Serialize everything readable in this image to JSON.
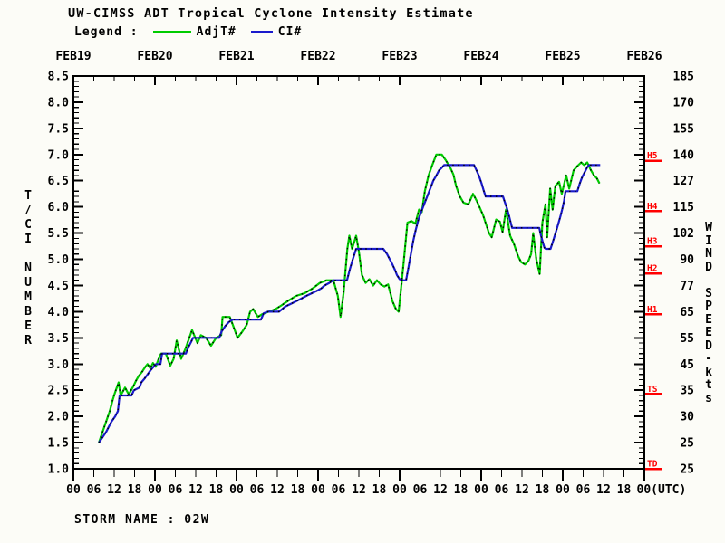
{
  "title": "UW-CIMSS ADT Tropical Cyclone Intensity Estimate",
  "legend": {
    "label": "Legend :",
    "adjt_label": "AdjT#",
    "ci_label": "CI#",
    "adjt_color": "#00cc00",
    "ci_color": "#1a1acc"
  },
  "storm_name": "STORM NAME : 02W",
  "chart_data": {
    "type": "line",
    "title": "UW-CIMSS ADT Tropical Cyclone Intensity Estimate",
    "xlabel": "",
    "ylabel_left": "T/CI NUMBER",
    "ylabel_right": "WIND SPEED-kts",
    "x_axis": {
      "top_labels": [
        "FEB19",
        "FEB20",
        "FEB21",
        "FEB22",
        "FEB23",
        "FEB24",
        "FEB25",
        "FEB26"
      ],
      "bottom_cycle": [
        "00",
        "06",
        "12",
        "18"
      ],
      "bottom_last": "00(UTC)",
      "hours_range": [
        0,
        168
      ],
      "tick_step_hours": 6
    },
    "y_left": {
      "min": 1.0,
      "max": 8.5,
      "tick_labels": [
        "8.5",
        "8.0",
        "7.5",
        "7.0",
        "6.5",
        "6.0",
        "5.5",
        "5.0",
        "4.5",
        "4.0",
        "3.5",
        "3.0",
        "2.5",
        "2.0",
        "1.5",
        "1.0"
      ]
    },
    "y_right": {
      "wind_labels": [
        "185",
        "170",
        "155",
        "140",
        "127",
        "115",
        "102",
        "90",
        "77",
        "65",
        "55",
        "45",
        "35",
        "30",
        "25",
        "25"
      ]
    },
    "category_markers": [
      {
        "label": "H5",
        "t": 6.88
      },
      {
        "label": "H4",
        "t": 5.92
      },
      {
        "label": "H3",
        "t": 5.25
      },
      {
        "label": "H2",
        "t": 4.73
      },
      {
        "label": "H1",
        "t": 3.95
      },
      {
        "label": "TS",
        "t": 2.43
      },
      {
        "label": "TD",
        "t": 1.0
      }
    ],
    "marker_color": "#ff0000",
    "series": [
      {
        "name": "AdjT#",
        "color": "#00cc00",
        "points": [
          [
            7.5,
            1.5
          ],
          [
            8.3,
            1.65
          ],
          [
            9.1,
            1.8
          ],
          [
            9.9,
            1.95
          ],
          [
            10.7,
            2.1
          ],
          [
            11.5,
            2.3
          ],
          [
            12.2,
            2.45
          ],
          [
            13.3,
            2.65
          ],
          [
            13.9,
            2.4
          ],
          [
            15.2,
            2.55
          ],
          [
            16.3,
            2.42
          ],
          [
            17.6,
            2.57
          ],
          [
            18.4,
            2.68
          ],
          [
            19.2,
            2.77
          ],
          [
            20.3,
            2.86
          ],
          [
            21.1,
            2.94
          ],
          [
            21.8,
            3.0
          ],
          [
            22.6,
            2.92
          ],
          [
            23.4,
            3.02
          ],
          [
            24.2,
            2.95
          ],
          [
            25.1,
            3.1
          ],
          [
            25.8,
            3.2
          ],
          [
            27.2,
            3.2
          ],
          [
            28.5,
            2.97
          ],
          [
            29.5,
            3.1
          ],
          [
            30.4,
            3.45
          ],
          [
            31.7,
            3.1
          ],
          [
            33.0,
            3.3
          ],
          [
            34.9,
            3.65
          ],
          [
            36.5,
            3.4
          ],
          [
            37.5,
            3.55
          ],
          [
            39.0,
            3.5
          ],
          [
            40.5,
            3.35
          ],
          [
            42.0,
            3.5
          ],
          [
            43.5,
            3.55
          ],
          [
            43.9,
            3.9
          ],
          [
            46.0,
            3.9
          ],
          [
            46.9,
            3.75
          ],
          [
            48.3,
            3.5
          ],
          [
            49.7,
            3.62
          ],
          [
            51.0,
            3.75
          ],
          [
            52.0,
            4.0
          ],
          [
            52.9,
            4.05
          ],
          [
            54.3,
            3.9
          ],
          [
            55.5,
            3.95
          ],
          [
            57.5,
            4.0
          ],
          [
            59.5,
            4.05
          ],
          [
            61.2,
            4.12
          ],
          [
            63.0,
            4.2
          ],
          [
            65.5,
            4.3
          ],
          [
            68.0,
            4.35
          ],
          [
            70.5,
            4.45
          ],
          [
            72.5,
            4.55
          ],
          [
            74.5,
            4.6
          ],
          [
            76.5,
            4.6
          ],
          [
            77.8,
            4.3
          ],
          [
            78.6,
            3.9
          ],
          [
            79.5,
            4.35
          ],
          [
            80.6,
            5.2
          ],
          [
            81.2,
            5.45
          ],
          [
            82.0,
            5.2
          ],
          [
            83.2,
            5.45
          ],
          [
            84.0,
            5.15
          ],
          [
            84.9,
            4.7
          ],
          [
            86.0,
            4.55
          ],
          [
            87.1,
            4.62
          ],
          [
            88.2,
            4.5
          ],
          [
            89.3,
            4.6
          ],
          [
            90.4,
            4.52
          ],
          [
            91.5,
            4.48
          ],
          [
            92.6,
            4.52
          ],
          [
            93.9,
            4.2
          ],
          [
            94.9,
            4.05
          ],
          [
            95.7,
            4.0
          ],
          [
            96.5,
            4.5
          ],
          [
            97.2,
            4.95
          ],
          [
            98.3,
            5.7
          ],
          [
            99.5,
            5.73
          ],
          [
            100.6,
            5.68
          ],
          [
            101.7,
            5.95
          ],
          [
            102.5,
            5.9
          ],
          [
            103.4,
            6.3
          ],
          [
            104.5,
            6.6
          ],
          [
            105.6,
            6.8
          ],
          [
            106.8,
            7.0
          ],
          [
            108.4,
            7.0
          ],
          [
            109.5,
            6.9
          ],
          [
            110.9,
            6.75
          ],
          [
            111.8,
            6.62
          ],
          [
            112.6,
            6.4
          ],
          [
            113.7,
            6.2
          ],
          [
            114.8,
            6.08
          ],
          [
            116.2,
            6.05
          ],
          [
            117.6,
            6.25
          ],
          [
            118.8,
            6.1
          ],
          [
            120.5,
            5.85
          ],
          [
            122.3,
            5.5
          ],
          [
            123.1,
            5.42
          ],
          [
            124.4,
            5.76
          ],
          [
            125.5,
            5.72
          ],
          [
            126.3,
            5.52
          ],
          [
            127.3,
            5.95
          ],
          [
            128.5,
            5.45
          ],
          [
            129.6,
            5.3
          ],
          [
            130.8,
            5.07
          ],
          [
            131.7,
            4.95
          ],
          [
            132.9,
            4.9
          ],
          [
            133.9,
            4.97
          ],
          [
            134.7,
            5.1
          ],
          [
            135.3,
            5.5
          ],
          [
            136.2,
            5.0
          ],
          [
            137.2,
            4.72
          ],
          [
            138.0,
            5.7
          ],
          [
            138.9,
            6.05
          ],
          [
            139.4,
            5.42
          ],
          [
            140.3,
            6.35
          ],
          [
            141.0,
            5.95
          ],
          [
            141.8,
            6.4
          ],
          [
            142.9,
            6.48
          ],
          [
            143.7,
            6.25
          ],
          [
            145.0,
            6.6
          ],
          [
            145.9,
            6.35
          ],
          [
            147.2,
            6.7
          ],
          [
            148.3,
            6.78
          ],
          [
            149.4,
            6.85
          ],
          [
            150.3,
            6.8
          ],
          [
            151.2,
            6.85
          ],
          [
            152.3,
            6.7
          ],
          [
            153.2,
            6.6
          ],
          [
            154.0,
            6.55
          ],
          [
            154.8,
            6.45
          ]
        ]
      },
      {
        "name": "CI#",
        "color": "#1a1acc",
        "points": [
          [
            7.5,
            1.5
          ],
          [
            9.6,
            1.7
          ],
          [
            11.2,
            1.9
          ],
          [
            12.3,
            2.0
          ],
          [
            13.1,
            2.1
          ],
          [
            13.6,
            2.4
          ],
          [
            17.1,
            2.4
          ],
          [
            17.8,
            2.5
          ],
          [
            19.4,
            2.55
          ],
          [
            20.0,
            2.65
          ],
          [
            20.9,
            2.72
          ],
          [
            21.8,
            2.8
          ],
          [
            22.7,
            2.88
          ],
          [
            23.6,
            2.95
          ],
          [
            24.3,
            3.0
          ],
          [
            25.6,
            3.0
          ],
          [
            26.1,
            3.2
          ],
          [
            33.1,
            3.2
          ],
          [
            33.8,
            3.32
          ],
          [
            34.6,
            3.42
          ],
          [
            35.2,
            3.5
          ],
          [
            42.9,
            3.5
          ],
          [
            43.6,
            3.62
          ],
          [
            44.6,
            3.72
          ],
          [
            45.7,
            3.8
          ],
          [
            46.9,
            3.85
          ],
          [
            55.2,
            3.85
          ],
          [
            56.0,
            3.97
          ],
          [
            57.2,
            4.0
          ],
          [
            60.5,
            4.0
          ],
          [
            62.4,
            4.1
          ],
          [
            64.0,
            4.15
          ],
          [
            65.6,
            4.2
          ],
          [
            67.1,
            4.25
          ],
          [
            68.5,
            4.3
          ],
          [
            70.1,
            4.35
          ],
          [
            71.7,
            4.4
          ],
          [
            73.0,
            4.45
          ],
          [
            73.9,
            4.5
          ],
          [
            75.3,
            4.55
          ],
          [
            76.5,
            4.6
          ],
          [
            80.5,
            4.6
          ],
          [
            81.3,
            4.8
          ],
          [
            82.2,
            5.0
          ],
          [
            83.2,
            5.2
          ],
          [
            91.2,
            5.2
          ],
          [
            92.3,
            5.1
          ],
          [
            93.1,
            5.0
          ],
          [
            93.9,
            4.9
          ],
          [
            94.6,
            4.8
          ],
          [
            95.2,
            4.7
          ],
          [
            96.0,
            4.62
          ],
          [
            96.8,
            4.6
          ],
          [
            97.9,
            4.6
          ],
          [
            98.6,
            4.85
          ],
          [
            99.3,
            5.1
          ],
          [
            100.0,
            5.35
          ],
          [
            100.7,
            5.55
          ],
          [
            101.5,
            5.75
          ],
          [
            102.3,
            5.9
          ],
          [
            103.2,
            6.05
          ],
          [
            104.1,
            6.2
          ],
          [
            105.0,
            6.35
          ],
          [
            105.9,
            6.5
          ],
          [
            106.8,
            6.6
          ],
          [
            107.6,
            6.7
          ],
          [
            108.4,
            6.75
          ],
          [
            109.1,
            6.8
          ],
          [
            117.9,
            6.8
          ],
          [
            118.6,
            6.7
          ],
          [
            119.4,
            6.58
          ],
          [
            120.1,
            6.45
          ],
          [
            120.7,
            6.32
          ],
          [
            121.3,
            6.2
          ],
          [
            126.4,
            6.2
          ],
          [
            127.0,
            6.08
          ],
          [
            127.6,
            5.97
          ],
          [
            128.1,
            5.85
          ],
          [
            128.6,
            5.72
          ],
          [
            129.1,
            5.6
          ],
          [
            137.1,
            5.6
          ],
          [
            137.6,
            5.45
          ],
          [
            138.1,
            5.33
          ],
          [
            138.6,
            5.22
          ],
          [
            139.0,
            5.2
          ],
          [
            140.4,
            5.2
          ],
          [
            140.9,
            5.3
          ],
          [
            141.5,
            5.42
          ],
          [
            142.1,
            5.55
          ],
          [
            142.7,
            5.68
          ],
          [
            143.3,
            5.82
          ],
          [
            143.9,
            5.97
          ],
          [
            144.4,
            6.12
          ],
          [
            144.8,
            6.3
          ],
          [
            148.3,
            6.3
          ],
          [
            149.0,
            6.45
          ],
          [
            149.7,
            6.57
          ],
          [
            150.5,
            6.67
          ],
          [
            151.2,
            6.76
          ],
          [
            151.8,
            6.8
          ],
          [
            155.0,
            6.8
          ]
        ]
      }
    ]
  }
}
